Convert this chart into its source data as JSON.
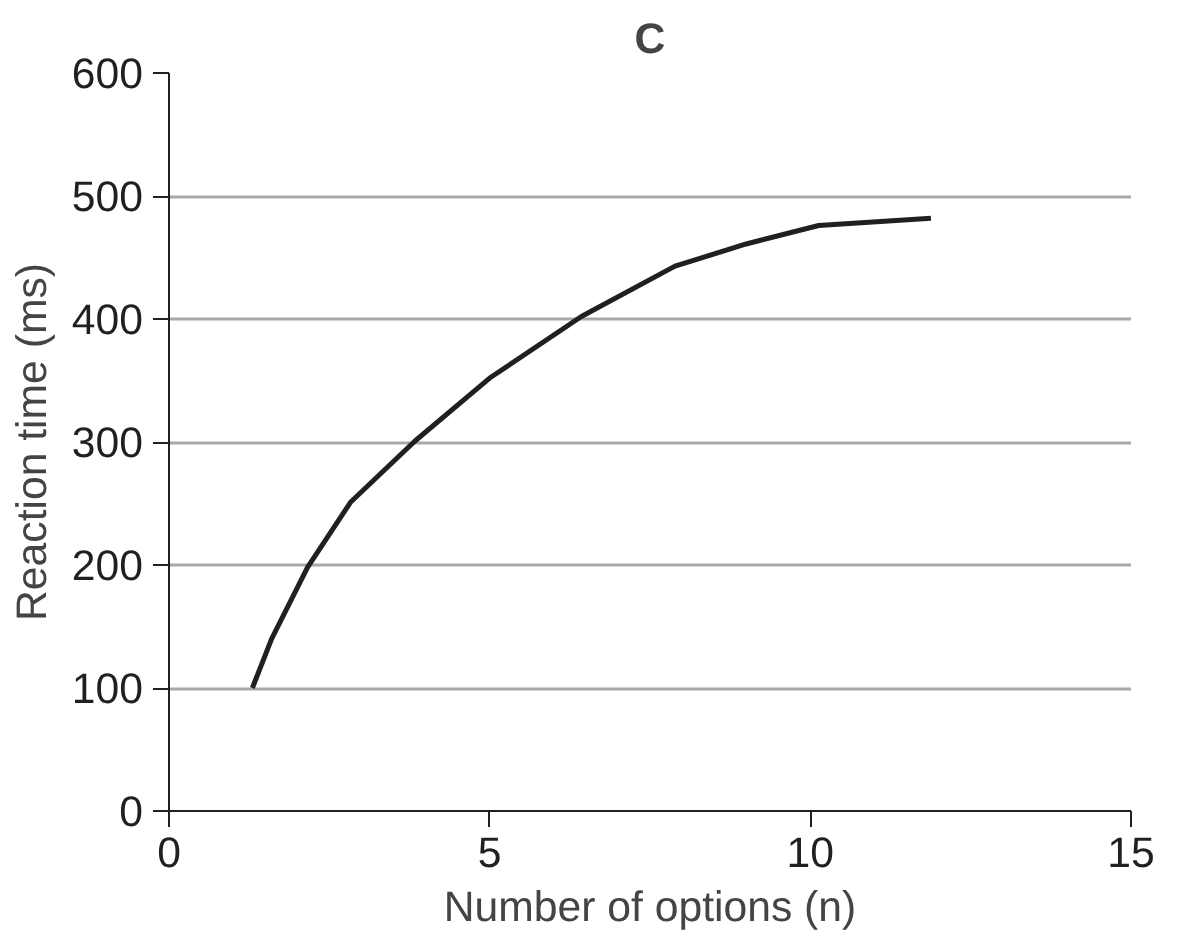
{
  "chart_data": {
    "type": "line",
    "title": "C",
    "xlabel": "Number of options (n)",
    "ylabel": "Reaction time (ms)",
    "x": [
      1.3,
      1.6,
      2.16,
      2.83,
      3.84,
      5.0,
      6.43,
      7.89,
      9.0,
      10.13,
      11.88
    ],
    "series": [
      {
        "color": "#231f20",
        "values": [
          100,
          140,
          198,
          251,
          301,
          352,
          402,
          443,
          461,
          476,
          482
        ]
      }
    ],
    "xlim": [
      0,
      15
    ],
    "xticks": [
      0,
      5,
      10,
      15
    ],
    "ylim": [
      0,
      600
    ],
    "yticks": [
      0,
      100,
      200,
      300,
      400,
      500,
      600
    ],
    "grid": "y",
    "marker": "none",
    "line_style": "solid"
  }
}
